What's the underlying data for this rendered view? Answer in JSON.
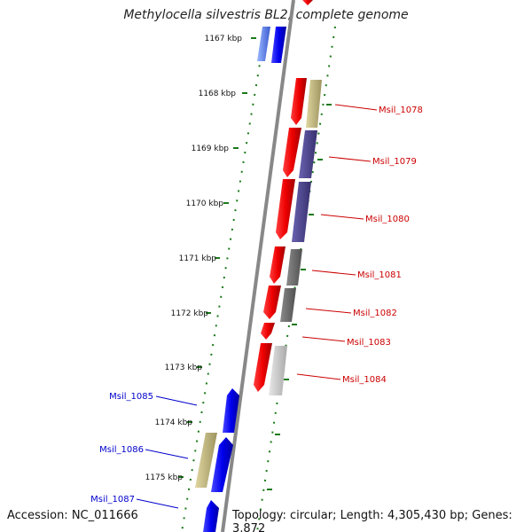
{
  "title": "Methylocella silvestris BL2, complete genome",
  "accession": "Accession: NC_011666",
  "summary": "Topology: circular; Length: 4,305,430 bp; Genes: 3,872",
  "ruler_ticks": [
    "1167 kbp",
    "1168 kbp",
    "1169 kbp",
    "1170 kbp",
    "1171 kbp",
    "1172 kbp",
    "1173 kbp",
    "1174 kbp",
    "1175 kbp"
  ],
  "colors": {
    "backbone": "#888888",
    "ruler": "#1a7a1a",
    "forward_label": "#0000cc",
    "reverse_label": "#cc0000",
    "cds_forward": "#0000ee",
    "cds_reverse": "#ee0000"
  },
  "reverse_genes": [
    "Msil_1078",
    "Msil_1079",
    "Msil_1080",
    "Msil_1081",
    "Msil_1082",
    "Msil_1083",
    "Msil_1084"
  ],
  "forward_genes": [
    "Msil_1085",
    "Msil_1086",
    "Msil_1087"
  ]
}
